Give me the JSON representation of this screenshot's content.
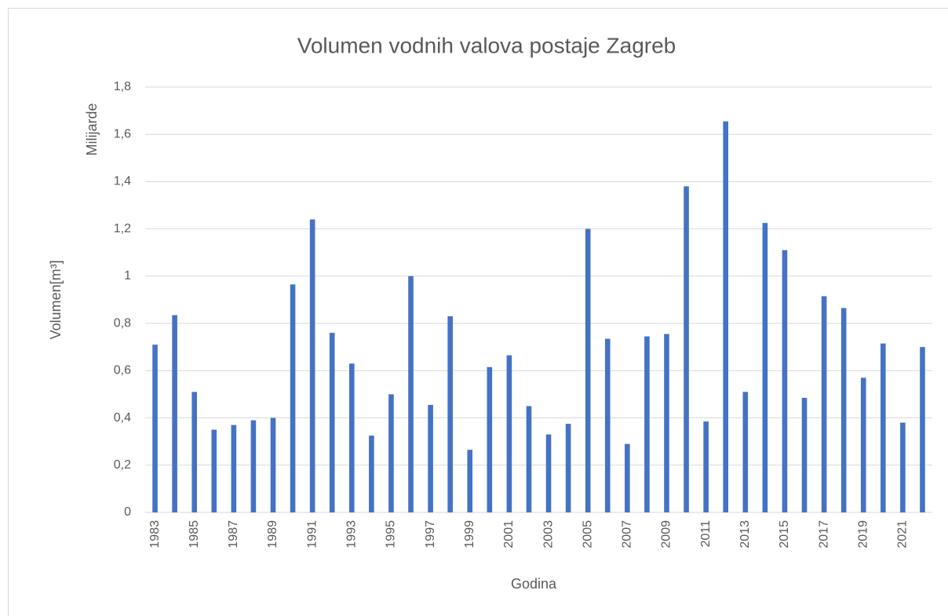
{
  "chart_data": {
    "type": "bar",
    "title": "Volumen vodnih valova postaje Zagreb",
    "x_label": "Godina",
    "y_label": "Volumen[m³]",
    "y_unit_label": "Milijarde",
    "categories": [
      "1983",
      null,
      "1985",
      null,
      "1987",
      null,
      "1989",
      null,
      "1991",
      null,
      "1993",
      null,
      "1995",
      null,
      "1997",
      null,
      "1999",
      null,
      "2001",
      null,
      "2003",
      null,
      "2005",
      null,
      "2007",
      null,
      "2009",
      null,
      "2011",
      null,
      "2013",
      null,
      "2015",
      null,
      "2017",
      null,
      "2019",
      null,
      "2021",
      null
    ],
    "values": [
      0.71,
      0.835,
      0.51,
      0.35,
      0.37,
      0.39,
      0.4,
      0.965,
      1.24,
      0.76,
      0.63,
      0.325,
      0.5,
      1.0,
      0.455,
      0.83,
      0.265,
      0.615,
      0.665,
      0.45,
      0.33,
      0.375,
      1.2,
      0.735,
      0.29,
      0.745,
      0.755,
      1.38,
      0.385,
      1.655,
      0.51,
      1.225,
      1.11,
      0.485,
      0.915,
      0.865,
      0.57,
      0.715,
      0.38,
      0.7
    ],
    "color": "#4472c4",
    "ylim": [
      0,
      1.8
    ],
    "yticks": [
      0,
      {
        "value": 0.2,
        "label": "0,2"
      },
      {
        "value": 0.4,
        "label": "0,4"
      },
      {
        "value": 0.6,
        "label": "0,6"
      },
      {
        "value": 0.8,
        "label": "0,8"
      },
      1,
      {
        "value": 1.2,
        "label": "1,2"
      },
      {
        "value": 1.4,
        "label": "1,4"
      },
      {
        "value": 1.6,
        "label": "1,6"
      },
      {
        "value": 1.8,
        "label": "1,8"
      }
    ],
    "grid": true
  }
}
